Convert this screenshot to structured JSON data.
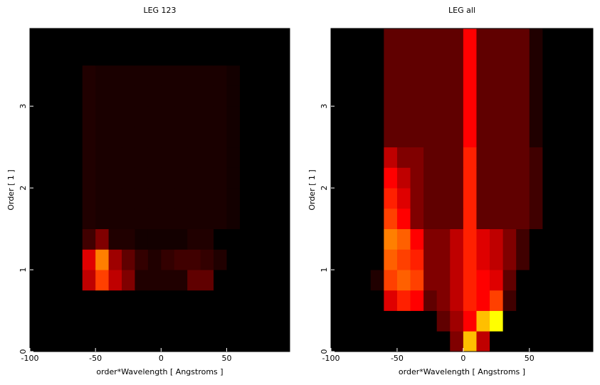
{
  "chart_data": [
    {
      "type": "heatmap",
      "title": "LEG 123",
      "xlabel": "order*Wavelength [ Angstroms ]",
      "ylabel": "Order [ 1 ]",
      "colormap": "hot",
      "xlim": [
        -100,
        98
      ],
      "ylim": [
        0,
        3.95
      ],
      "xticks": [
        -100,
        -50,
        0,
        50
      ],
      "yticks": [
        0,
        1,
        2,
        3
      ],
      "xedges": [
        -100,
        -90,
        -80,
        -70,
        -60,
        -50,
        -40,
        -30,
        -20,
        -10,
        0,
        10,
        20,
        30,
        40,
        50,
        60,
        70,
        80,
        90,
        100
      ],
      "yedges": [
        0,
        0.25,
        0.5,
        0.75,
        1,
        1.25,
        1.5,
        1.75,
        2,
        2.25,
        2.5,
        2.75,
        3,
        3.25,
        3.5,
        3.75,
        4
      ],
      "z": [
        [
          0,
          0,
          0,
          0,
          0,
          0,
          0,
          0,
          0,
          0,
          0,
          0,
          0,
          0,
          0,
          0,
          0,
          0,
          0,
          0
        ],
        [
          0,
          0,
          0,
          0,
          0,
          0,
          0,
          0,
          0,
          0,
          0,
          0,
          0,
          0,
          0,
          0,
          0,
          0,
          0,
          0
        ],
        [
          0,
          0,
          0,
          0,
          0,
          0,
          0,
          0,
          0,
          0,
          0,
          0,
          0,
          0,
          0,
          0,
          0,
          0,
          0,
          0
        ],
        [
          0,
          0,
          0,
          0,
          0.3,
          0.5,
          0.3,
          0.2,
          0.05,
          0.05,
          0.05,
          0.05,
          0.15,
          0.15,
          0,
          0,
          0,
          0,
          0,
          0
        ],
        [
          0,
          0,
          0,
          0,
          0.35,
          0.6,
          0.25,
          0.15,
          0.08,
          0.05,
          0.08,
          0.1,
          0.1,
          0.08,
          0.05,
          0,
          0,
          0,
          0,
          0
        ],
        [
          0,
          0,
          0,
          0,
          0.1,
          0.2,
          0.05,
          0.05,
          0.03,
          0.03,
          0.03,
          0.03,
          0.05,
          0.05,
          0,
          0,
          0,
          0,
          0,
          0
        ],
        [
          0,
          0,
          0,
          0,
          0.05,
          0.04,
          0.04,
          0.04,
          0.04,
          0.04,
          0.04,
          0.04,
          0.04,
          0.04,
          0.04,
          0.03,
          0,
          0,
          0,
          0
        ],
        [
          0,
          0,
          0,
          0,
          0.05,
          0.04,
          0.04,
          0.04,
          0.04,
          0.04,
          0.04,
          0.04,
          0.04,
          0.04,
          0.04,
          0.03,
          0,
          0,
          0,
          0
        ],
        [
          0,
          0,
          0,
          0,
          0.05,
          0.04,
          0.04,
          0.04,
          0.04,
          0.04,
          0.04,
          0.04,
          0.04,
          0.04,
          0.04,
          0.03,
          0,
          0,
          0,
          0
        ],
        [
          0,
          0,
          0,
          0,
          0.05,
          0.04,
          0.04,
          0.04,
          0.04,
          0.04,
          0.04,
          0.04,
          0.04,
          0.04,
          0.04,
          0.03,
          0,
          0,
          0,
          0
        ],
        [
          0,
          0,
          0,
          0,
          0.05,
          0.04,
          0.04,
          0.04,
          0.04,
          0.04,
          0.04,
          0.04,
          0.04,
          0.04,
          0.04,
          0.03,
          0,
          0,
          0,
          0
        ],
        [
          0,
          0,
          0,
          0,
          0.05,
          0.04,
          0.04,
          0.04,
          0.04,
          0.04,
          0.04,
          0.04,
          0.04,
          0.04,
          0.04,
          0.03,
          0,
          0,
          0,
          0
        ],
        [
          0,
          0,
          0,
          0,
          0.05,
          0.04,
          0.04,
          0.04,
          0.04,
          0.04,
          0.04,
          0.04,
          0.04,
          0.04,
          0.04,
          0.03,
          0,
          0,
          0,
          0
        ],
        [
          0,
          0,
          0,
          0,
          0.05,
          0.04,
          0.04,
          0.04,
          0.04,
          0.04,
          0.04,
          0.04,
          0.04,
          0.04,
          0.04,
          0.03,
          0,
          0,
          0,
          0
        ],
        [
          0,
          0,
          0,
          0,
          0,
          0,
          0,
          0,
          0,
          0,
          0,
          0,
          0,
          0,
          0,
          0,
          0,
          0,
          0,
          0
        ],
        [
          0,
          0,
          0,
          0,
          0,
          0,
          0,
          0,
          0,
          0,
          0,
          0,
          0,
          0,
          0,
          0,
          0,
          0,
          0,
          0
        ]
      ]
    },
    {
      "type": "heatmap",
      "title": "LEG all",
      "xlabel": "order*Wavelength [ Angstroms ]",
      "ylabel": "Order [ 1 ]",
      "colormap": "hot",
      "xlim": [
        -100,
        98
      ],
      "ylim": [
        0,
        3.95
      ],
      "xticks": [
        -100,
        -50,
        0,
        50
      ],
      "yticks": [
        0,
        1,
        2,
        3
      ],
      "xedges": [
        -100,
        -90,
        -80,
        -70,
        -60,
        -50,
        -40,
        -30,
        -20,
        -10,
        0,
        10,
        20,
        30,
        40,
        50,
        60,
        70,
        80,
        90,
        100
      ],
      "yedges": [
        0,
        0.25,
        0.5,
        0.75,
        1,
        1.25,
        1.5,
        1.75,
        2,
        2.25,
        2.5,
        2.75,
        3,
        3.25,
        3.5,
        3.75,
        4
      ],
      "z": [
        [
          0,
          0,
          0,
          0,
          0,
          0,
          0,
          0,
          0,
          0.2,
          0.7,
          0.3,
          0,
          0,
          0,
          0,
          0,
          0,
          0,
          0
        ],
        [
          0,
          0,
          0,
          0,
          0,
          0,
          0,
          0,
          0.15,
          0.25,
          0.4,
          0.7,
          0.8,
          0,
          0,
          0,
          0,
          0,
          0,
          0
        ],
        [
          0,
          0,
          0,
          0,
          0.35,
          0.45,
          0.4,
          0.15,
          0.2,
          0.3,
          0.45,
          0.4,
          0.5,
          0.1,
          0,
          0,
          0,
          0,
          0,
          0
        ],
        [
          0,
          0,
          0,
          0.05,
          0.5,
          0.55,
          0.5,
          0.2,
          0.2,
          0.3,
          0.45,
          0.4,
          0.35,
          0.15,
          0,
          0,
          0,
          0,
          0,
          0
        ],
        [
          0,
          0,
          0,
          0,
          0.55,
          0.5,
          0.45,
          0.2,
          0.2,
          0.3,
          0.45,
          0.35,
          0.3,
          0.2,
          0.1,
          0,
          0,
          0,
          0,
          0
        ],
        [
          0,
          0,
          0,
          0,
          0.6,
          0.55,
          0.4,
          0.2,
          0.2,
          0.3,
          0.45,
          0.35,
          0.3,
          0.2,
          0.1,
          0,
          0,
          0,
          0,
          0
        ],
        [
          0,
          0,
          0,
          0,
          0.5,
          0.4,
          0.2,
          0.15,
          0.15,
          0.15,
          0.45,
          0.15,
          0.15,
          0.15,
          0.15,
          0.1,
          0,
          0,
          0,
          0
        ],
        [
          0,
          0,
          0,
          0,
          0.45,
          0.35,
          0.2,
          0.15,
          0.15,
          0.15,
          0.45,
          0.15,
          0.15,
          0.15,
          0.15,
          0.1,
          0,
          0,
          0,
          0
        ],
        [
          0,
          0,
          0,
          0,
          0.4,
          0.3,
          0.2,
          0.15,
          0.15,
          0.15,
          0.45,
          0.15,
          0.15,
          0.15,
          0.15,
          0.1,
          0,
          0,
          0,
          0
        ],
        [
          0,
          0,
          0,
          0,
          0.3,
          0.2,
          0.2,
          0.15,
          0.15,
          0.15,
          0.45,
          0.15,
          0.15,
          0.15,
          0.15,
          0.1,
          0,
          0,
          0,
          0
        ],
        [
          0,
          0,
          0,
          0,
          0.15,
          0.15,
          0.15,
          0.15,
          0.15,
          0.15,
          0.4,
          0.15,
          0.15,
          0.15,
          0.15,
          0.05,
          0,
          0,
          0,
          0
        ],
        [
          0,
          0,
          0,
          0,
          0.15,
          0.15,
          0.15,
          0.15,
          0.15,
          0.15,
          0.4,
          0.15,
          0.15,
          0.15,
          0.15,
          0.05,
          0,
          0,
          0,
          0
        ],
        [
          0,
          0,
          0,
          0,
          0.15,
          0.15,
          0.15,
          0.15,
          0.15,
          0.15,
          0.4,
          0.15,
          0.15,
          0.15,
          0.15,
          0.05,
          0,
          0,
          0,
          0
        ],
        [
          0,
          0,
          0,
          0,
          0.15,
          0.15,
          0.15,
          0.15,
          0.15,
          0.15,
          0.4,
          0.15,
          0.15,
          0.15,
          0.15,
          0.05,
          0,
          0,
          0,
          0
        ],
        [
          0,
          0,
          0,
          0,
          0.15,
          0.15,
          0.15,
          0.15,
          0.15,
          0.15,
          0.4,
          0.15,
          0.15,
          0.15,
          0.15,
          0.05,
          0,
          0,
          0,
          0
        ],
        [
          0,
          0,
          0,
          0,
          0.15,
          0.15,
          0.15,
          0.15,
          0.15,
          0.15,
          0.4,
          0.15,
          0.15,
          0.15,
          0.15,
          0.05,
          0,
          0,
          0,
          0
        ]
      ]
    }
  ]
}
